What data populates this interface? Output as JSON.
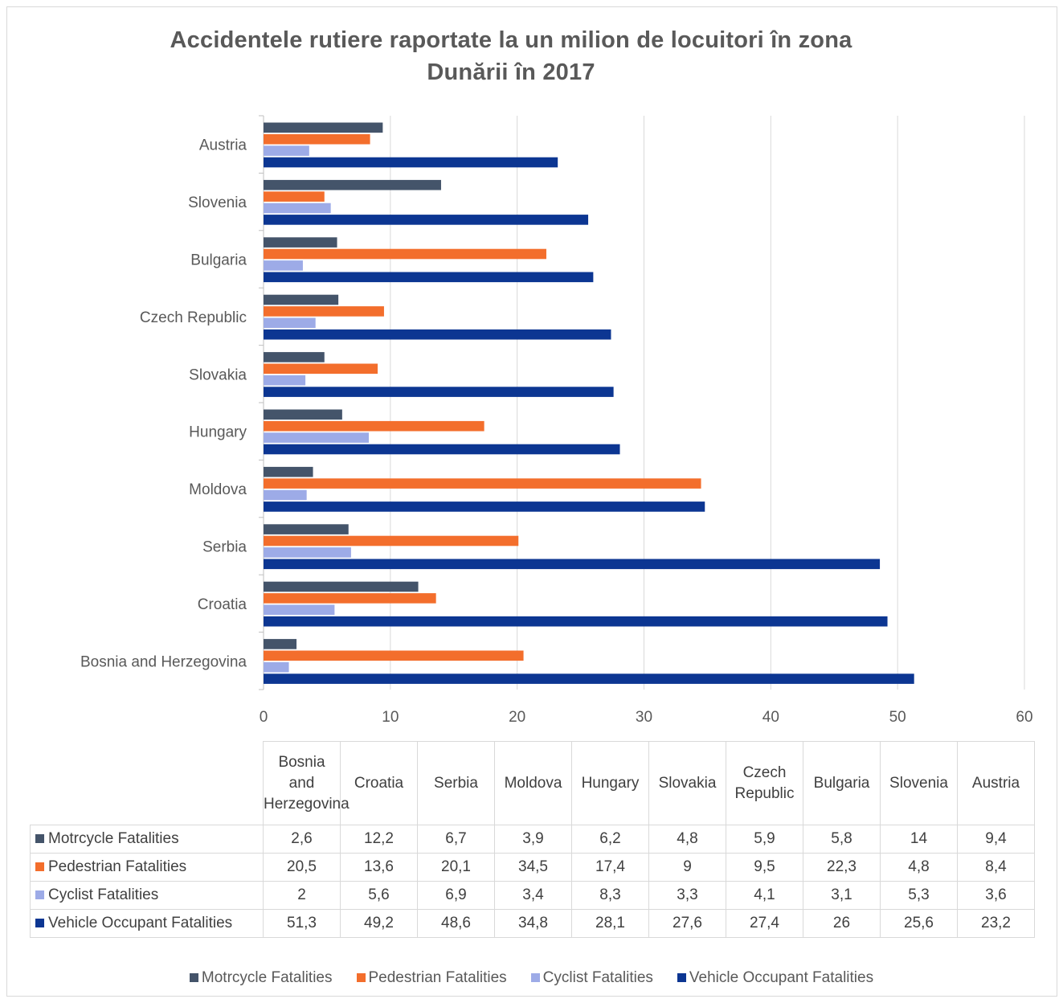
{
  "chart_data": {
    "type": "bar",
    "orientation": "horizontal",
    "title_lines": [
      "Accidentele rutiere raportate la un milion de locuitori în zona",
      "Dunării în 2017"
    ],
    "categories": [
      "Bosnia and Herzegovina",
      "Croatia",
      "Serbia",
      "Moldova",
      "Hungary",
      "Slovakia",
      "Czech Republic",
      "Bulgaria",
      "Slovenia",
      "Austria"
    ],
    "table_headers": [
      "Bosnia and Herzegovina",
      "Croatia",
      "Serbia",
      "Moldova",
      "Hungary",
      "Slovakia",
      "Czech Republic",
      "Bulgaria",
      "Slovenia",
      "Austria"
    ],
    "series": [
      {
        "name": "Motrcycle Fatalities",
        "color": "#44546a",
        "values": [
          2.6,
          12.2,
          6.7,
          3.9,
          6.2,
          4.8,
          5.9,
          5.8,
          14,
          9.4
        ],
        "labels": [
          "2,6",
          "12,2",
          "6,7",
          "3,9",
          "6,2",
          "4,8",
          "5,9",
          "5,8",
          "14",
          "9,4"
        ]
      },
      {
        "name": "Pedestrian Fatalities",
        "color": "#f36e2c",
        "values": [
          20.5,
          13.6,
          20.1,
          34.5,
          17.4,
          9,
          9.5,
          22.3,
          4.8,
          8.4
        ],
        "labels": [
          "20,5",
          "13,6",
          "20,1",
          "34,5",
          "17,4",
          "9",
          "9,5",
          "22,3",
          "4,8",
          "8,4"
        ]
      },
      {
        "name": "Cyclist Fatalities",
        "color": "#9dabe7",
        "values": [
          2,
          5.6,
          6.9,
          3.4,
          8.3,
          3.3,
          4.1,
          3.1,
          5.3,
          3.6
        ],
        "labels": [
          "2",
          "5,6",
          "6,9",
          "3,4",
          "8,3",
          "3,3",
          "4,1",
          "3,1",
          "5,3",
          "3,6"
        ]
      },
      {
        "name": "Vehicle Occupant Fatalities",
        "color": "#0c3692",
        "values": [
          51.3,
          49.2,
          48.6,
          34.8,
          28.1,
          27.6,
          27.4,
          26,
          25.6,
          23.2
        ],
        "labels": [
          "51,3",
          "49,2",
          "48,6",
          "34,8",
          "28,1",
          "27,6",
          "27,4",
          "26",
          "25,6",
          "23,2"
        ]
      }
    ],
    "xlim": [
      0,
      60
    ],
    "x_ticks": [
      "0",
      "10",
      "20",
      "30",
      "40",
      "50",
      "60"
    ],
    "grid": true,
    "legend_position": "bottom",
    "data_table": true
  }
}
